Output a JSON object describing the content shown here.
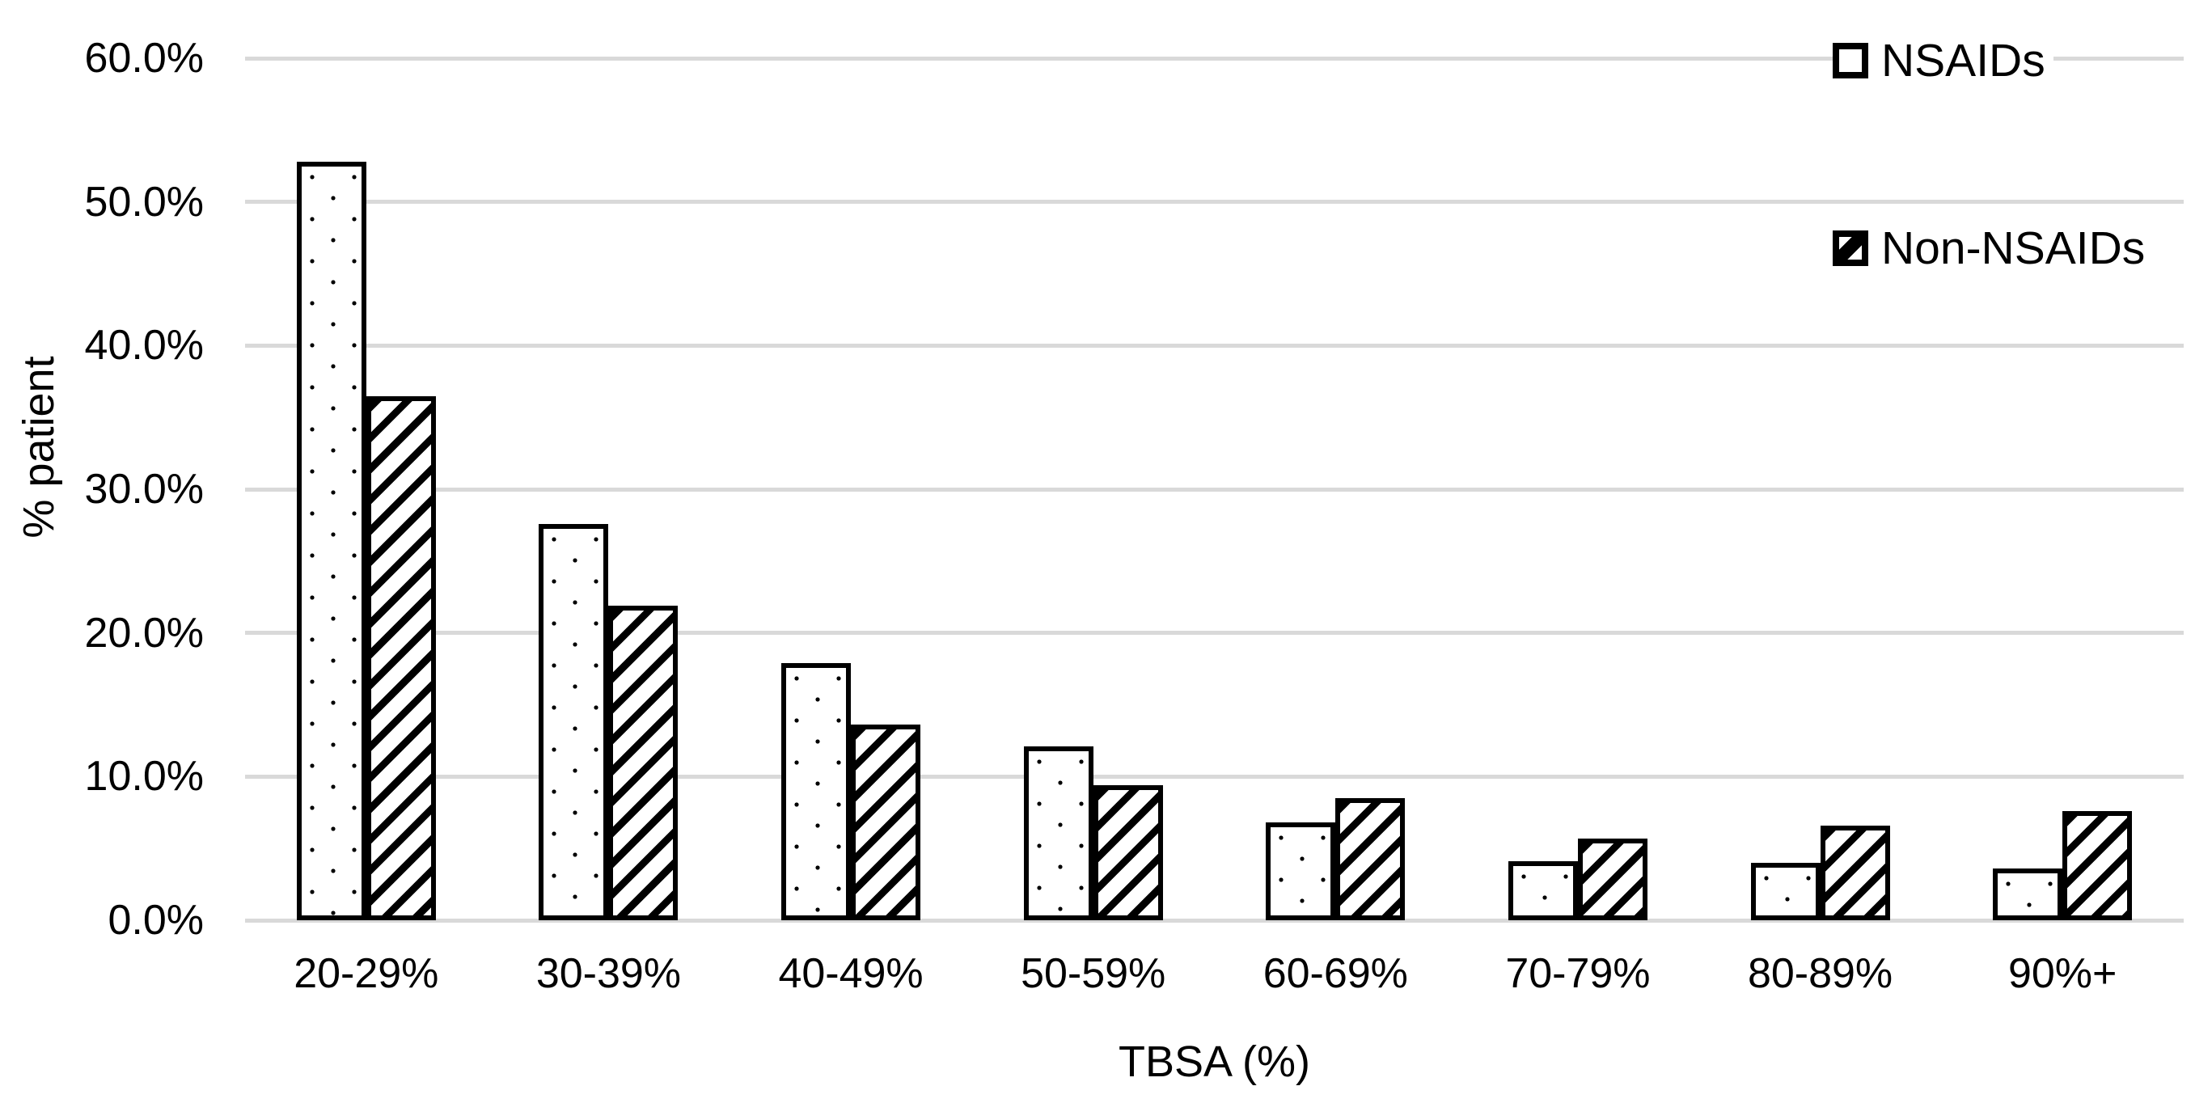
{
  "chart_data": {
    "type": "bar",
    "title": "",
    "xlabel": "TBSA (%)",
    "ylabel": "% patient",
    "categories": [
      "20-29%",
      "30-39%",
      "40-49%",
      "50-59%",
      "60-69%",
      "70-79%",
      "80-89%",
      "90%+"
    ],
    "series": [
      {
        "name": "NSAIDs",
        "pattern": "dots",
        "values": [
          52.8,
          27.6,
          17.9,
          12.1,
          6.8,
          4.1,
          4.0,
          3.6
        ]
      },
      {
        "name": "Non-NSAIDs",
        "pattern": "diagonal-stripes",
        "values": [
          36.5,
          21.9,
          13.6,
          9.4,
          8.5,
          5.7,
          6.6,
          7.6
        ]
      }
    ],
    "ylim": [
      0,
      60
    ],
    "ytick_step": 10,
    "ytick_labels": [
      "0.0%",
      "10.0%",
      "20.0%",
      "30.0%",
      "40.0%",
      "50.0%",
      "60.0%"
    ],
    "grid": "horizontal",
    "legend_position": "top-right",
    "colors": {
      "bar_fill": "#ffffff",
      "bar_border": "#000000",
      "pattern": "#000000",
      "gridline": "#d9d9d9",
      "text": "#000000",
      "background": "#ffffff"
    }
  }
}
